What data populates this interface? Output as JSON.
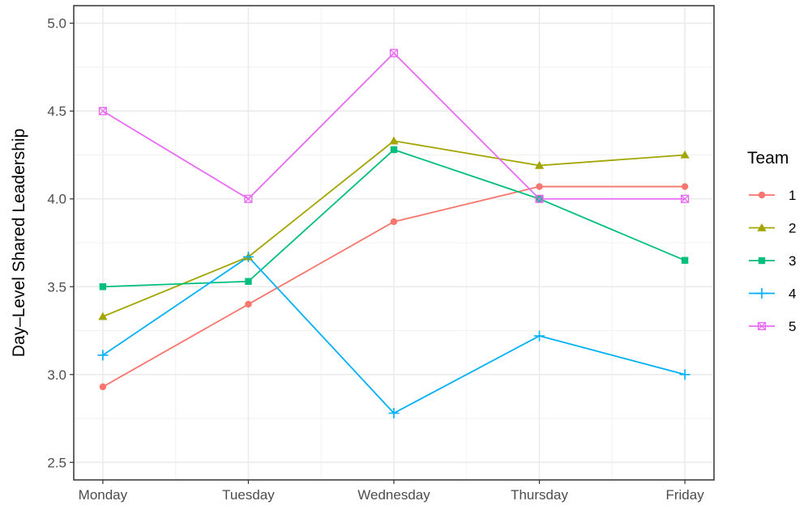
{
  "chart_data": {
    "type": "line",
    "title": "",
    "xlabel": "",
    "ylabel": "Day–Level Shared Leadership",
    "categories": [
      "Monday",
      "Tuesday",
      "Wednesday",
      "Thursday",
      "Friday"
    ],
    "ylim": [
      2.4,
      5.1
    ],
    "yticks": [
      "2.5",
      "3.0",
      "3.5",
      "4.0",
      "4.5",
      "5.0"
    ],
    "grid": true,
    "legend_title": "Team",
    "legend_position": "right",
    "series": [
      {
        "name": "1",
        "color": "#F8766D",
        "marker": "circle",
        "values": [
          2.93,
          3.4,
          3.87,
          4.07,
          4.07
        ]
      },
      {
        "name": "2",
        "color": "#A3A500",
        "marker": "triangle",
        "values": [
          3.33,
          3.67,
          4.33,
          4.19,
          4.25
        ]
      },
      {
        "name": "3",
        "color": "#00BF7D",
        "marker": "square",
        "values": [
          3.5,
          3.53,
          4.28,
          4.0,
          3.65
        ]
      },
      {
        "name": "4",
        "color": "#00B0F6",
        "marker": "plus",
        "values": [
          3.11,
          3.67,
          2.78,
          3.22,
          3.0
        ]
      },
      {
        "name": "5",
        "color": "#E76BF3",
        "marker": "boxcross",
        "values": [
          4.5,
          4.0,
          4.83,
          4.0,
          4.0
        ]
      }
    ]
  }
}
